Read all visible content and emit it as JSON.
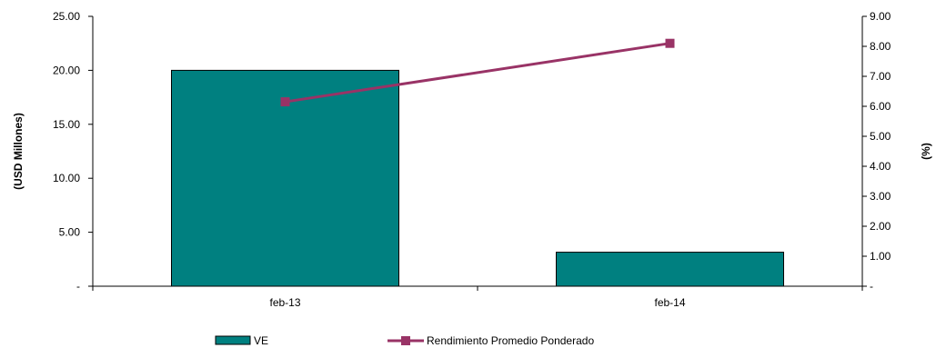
{
  "chart_data": {
    "type": "bar",
    "categories": [
      "feb-13",
      "feb-14"
    ],
    "series": [
      {
        "name": "VE",
        "type": "bar",
        "axis": "left",
        "values": [
          20.0,
          3.15
        ],
        "color": "#008080"
      },
      {
        "name": "Rendimiento Promedio Ponderado",
        "type": "line",
        "axis": "right",
        "values": [
          6.15,
          8.1
        ],
        "color": "#993366"
      }
    ],
    "y_left": {
      "label": "(USD Millones)",
      "ylim": [
        0,
        25
      ],
      "ticks": [
        "-",
        "5.00",
        "10.00",
        "15.00",
        "20.00",
        "25.00"
      ]
    },
    "y_right": {
      "label": "(%)",
      "ylim": [
        0,
        9
      ],
      "ticks": [
        "-",
        "1.00",
        "2.00",
        "3.00",
        "4.00",
        "5.00",
        "6.00",
        "7.00",
        "8.00",
        "9.00"
      ]
    },
    "grid": false,
    "legend_position": "bottom"
  }
}
